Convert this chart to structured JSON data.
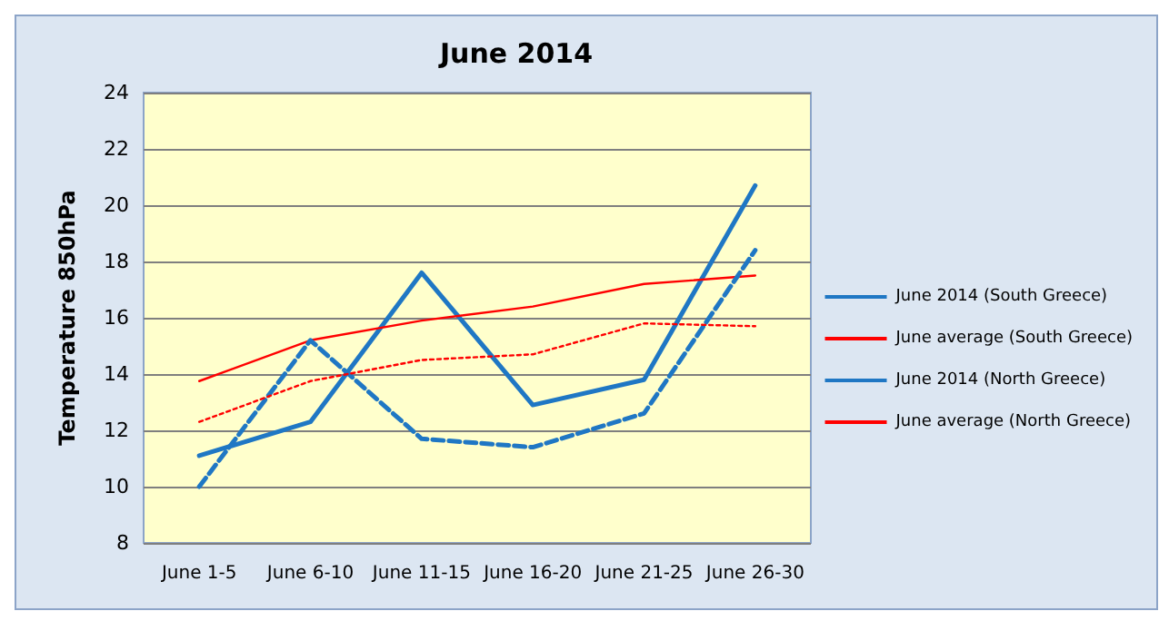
{
  "chart_data": {
    "type": "line",
    "title": "June 2014",
    "ylabel": "Temperature 850hPa",
    "categories": [
      "June 1-5",
      "June 6-10",
      "June 11-15",
      "June 16-20",
      "June 21-25",
      "June 26-30"
    ],
    "series": [
      {
        "name": "June 2014 (South Greece)",
        "color": "#1f77c4",
        "values": [
          11.1,
          12.3,
          17.6,
          12.9,
          13.8,
          20.7
        ],
        "line_style": "solid"
      },
      {
        "name": "June average (South Greece)",
        "color": "#ff0000",
        "values": [
          13.75,
          15.2,
          15.9,
          16.4,
          17.2,
          17.5
        ],
        "line_style": "solid"
      },
      {
        "name": "June 2014 (North Greece)",
        "color": "#1f77c4",
        "values": [
          10.0,
          15.2,
          11.7,
          11.4,
          12.6,
          18.4
        ],
        "line_style": "dashed"
      },
      {
        "name": "June average (North Greece)",
        "color": "#ff0000",
        "values": [
          12.3,
          13.75,
          14.5,
          14.7,
          15.8,
          15.7
        ],
        "line_style": "dotted"
      }
    ],
    "ylim": [
      8,
      24
    ],
    "yticks": [
      8,
      10,
      12,
      14,
      16,
      18,
      20,
      22,
      24
    ],
    "grid": "y",
    "legend": "right",
    "marker": "none"
  }
}
